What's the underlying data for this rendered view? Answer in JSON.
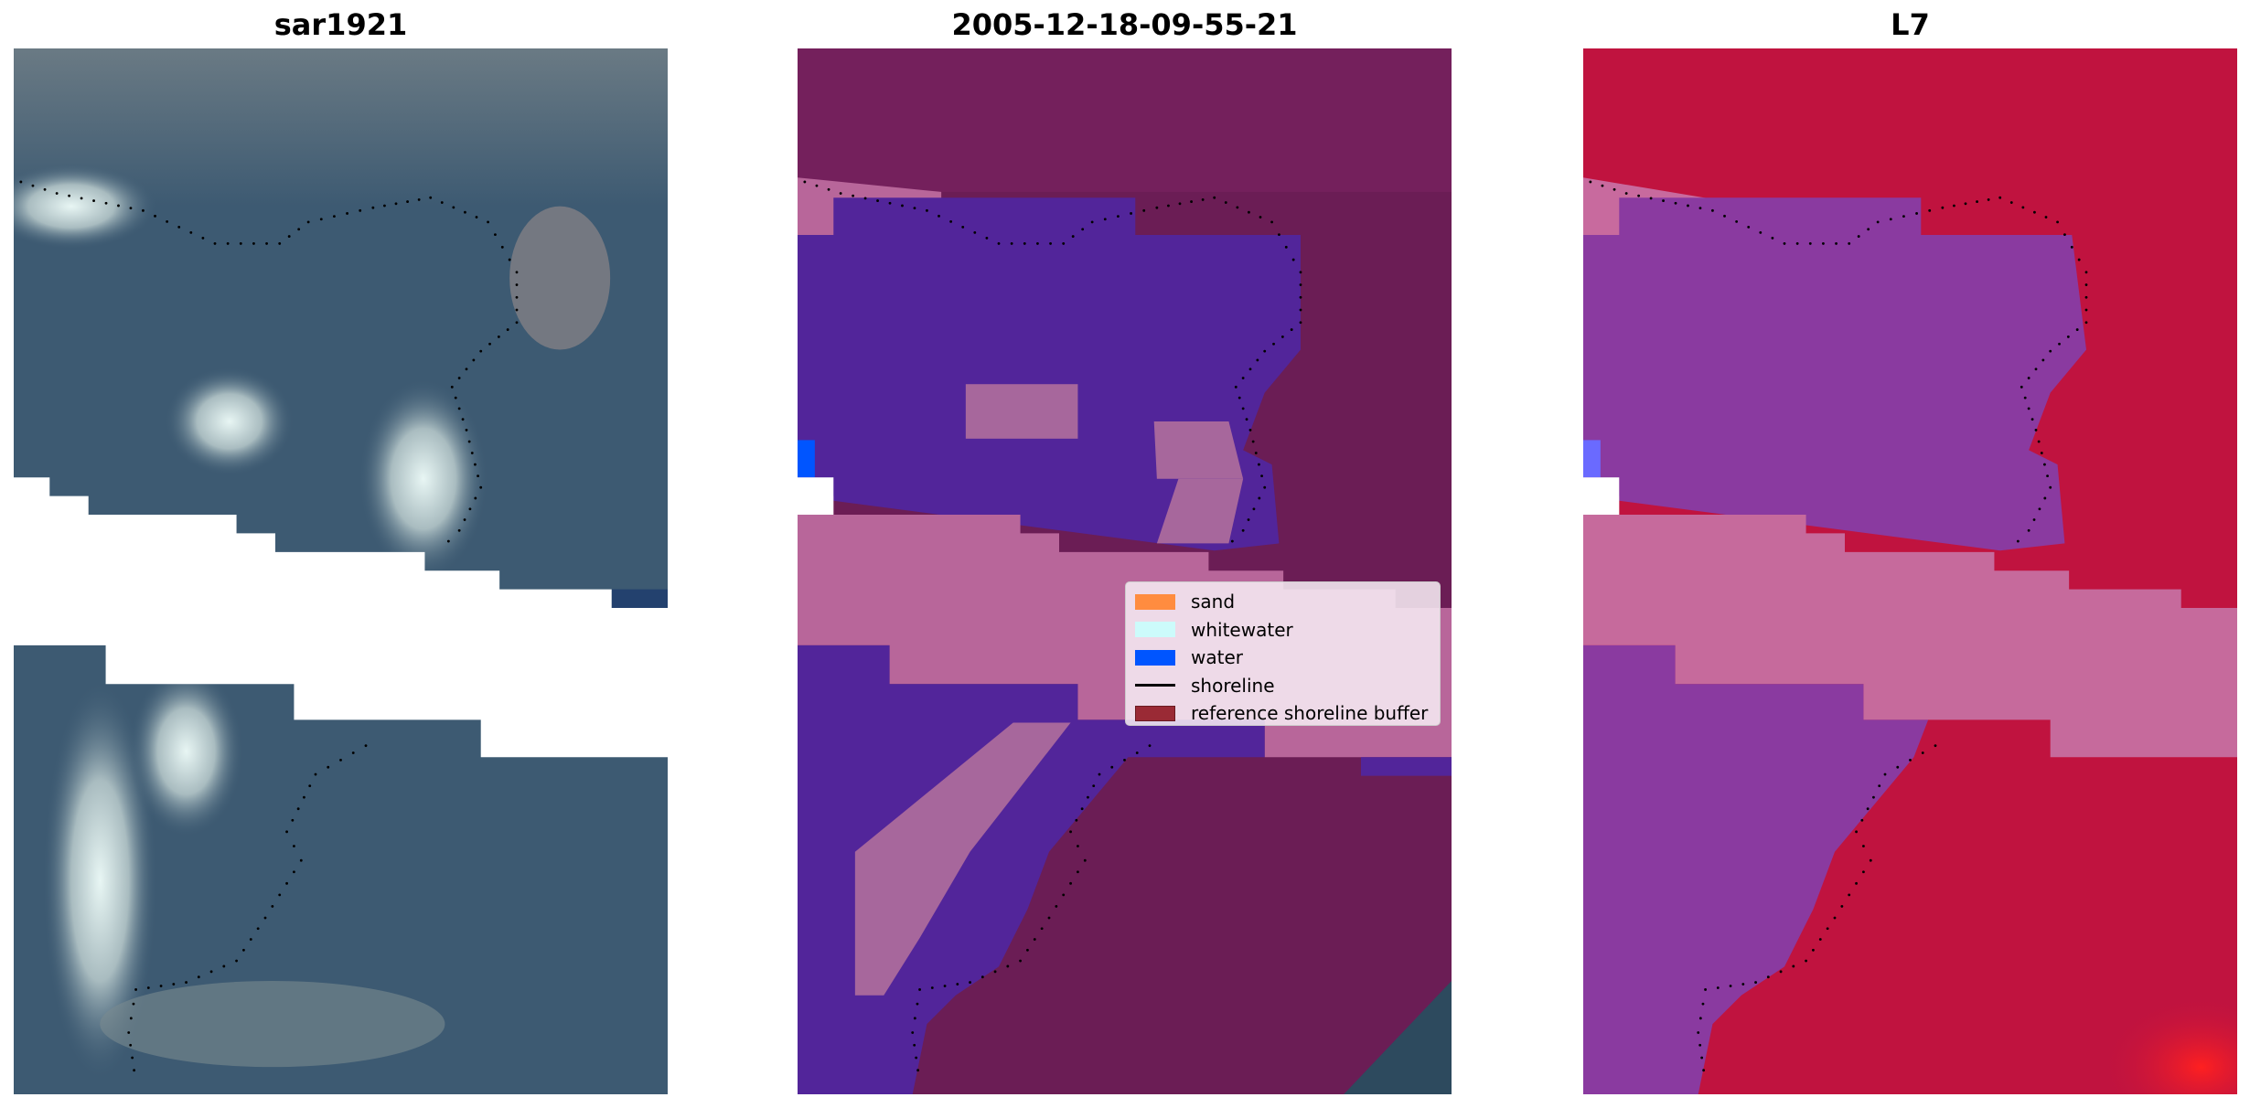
{
  "panels": [
    {
      "title": "sar1921",
      "style": "rgb"
    },
    {
      "title": "2005-12-18-09-55-21",
      "style": "classified"
    },
    {
      "title": "L7",
      "style": "false-color"
    }
  ],
  "legend": {
    "items": [
      {
        "label": "sand",
        "type": "patch",
        "color": "#ff8c3f"
      },
      {
        "label": "whitewater",
        "type": "patch",
        "color": "#ccfbfb"
      },
      {
        "label": "water",
        "type": "patch",
        "color": "#0055ff"
      },
      {
        "label": "shoreline",
        "type": "line",
        "color": "#000000"
      },
      {
        "label": "reference shoreline buffer",
        "type": "patch",
        "color": "#9a2a35"
      }
    ]
  }
}
